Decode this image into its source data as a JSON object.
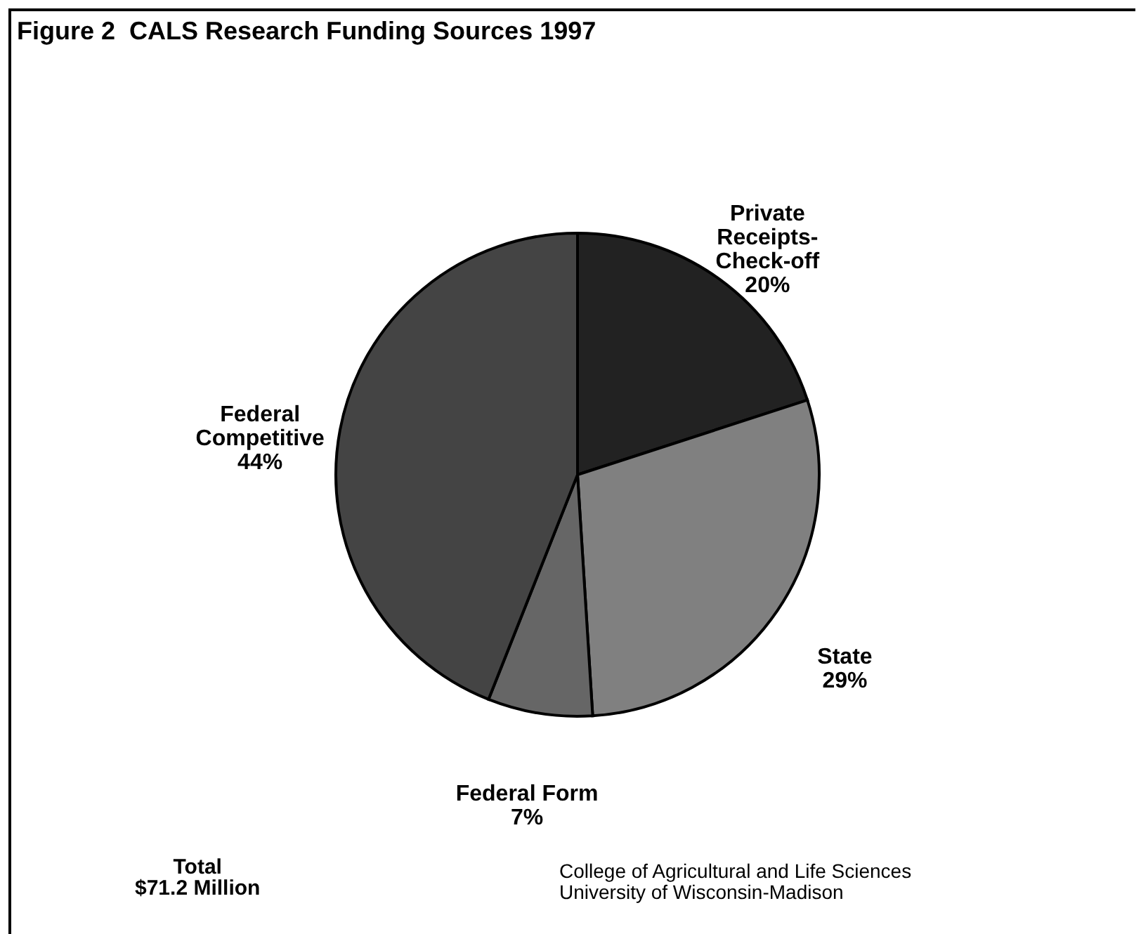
{
  "chart_data": {
    "type": "pie",
    "title": "Figure 2  CALS Research Funding Sources 1997",
    "categories": [
      "Private Receipts-Check-off",
      "State",
      "Federal Form",
      "Federal Competitive"
    ],
    "values": [
      20,
      29,
      7,
      44
    ],
    "value_labels": [
      "20%",
      "29%",
      "7%",
      "44%"
    ],
    "colors": [
      "#222222",
      "#808080",
      "#666666",
      "#444444"
    ],
    "annotations": [
      "Total $71.2 Million",
      "College of Agricultural and Life Sciences\nUniversity of Wisconsin-Madison"
    ]
  }
}
